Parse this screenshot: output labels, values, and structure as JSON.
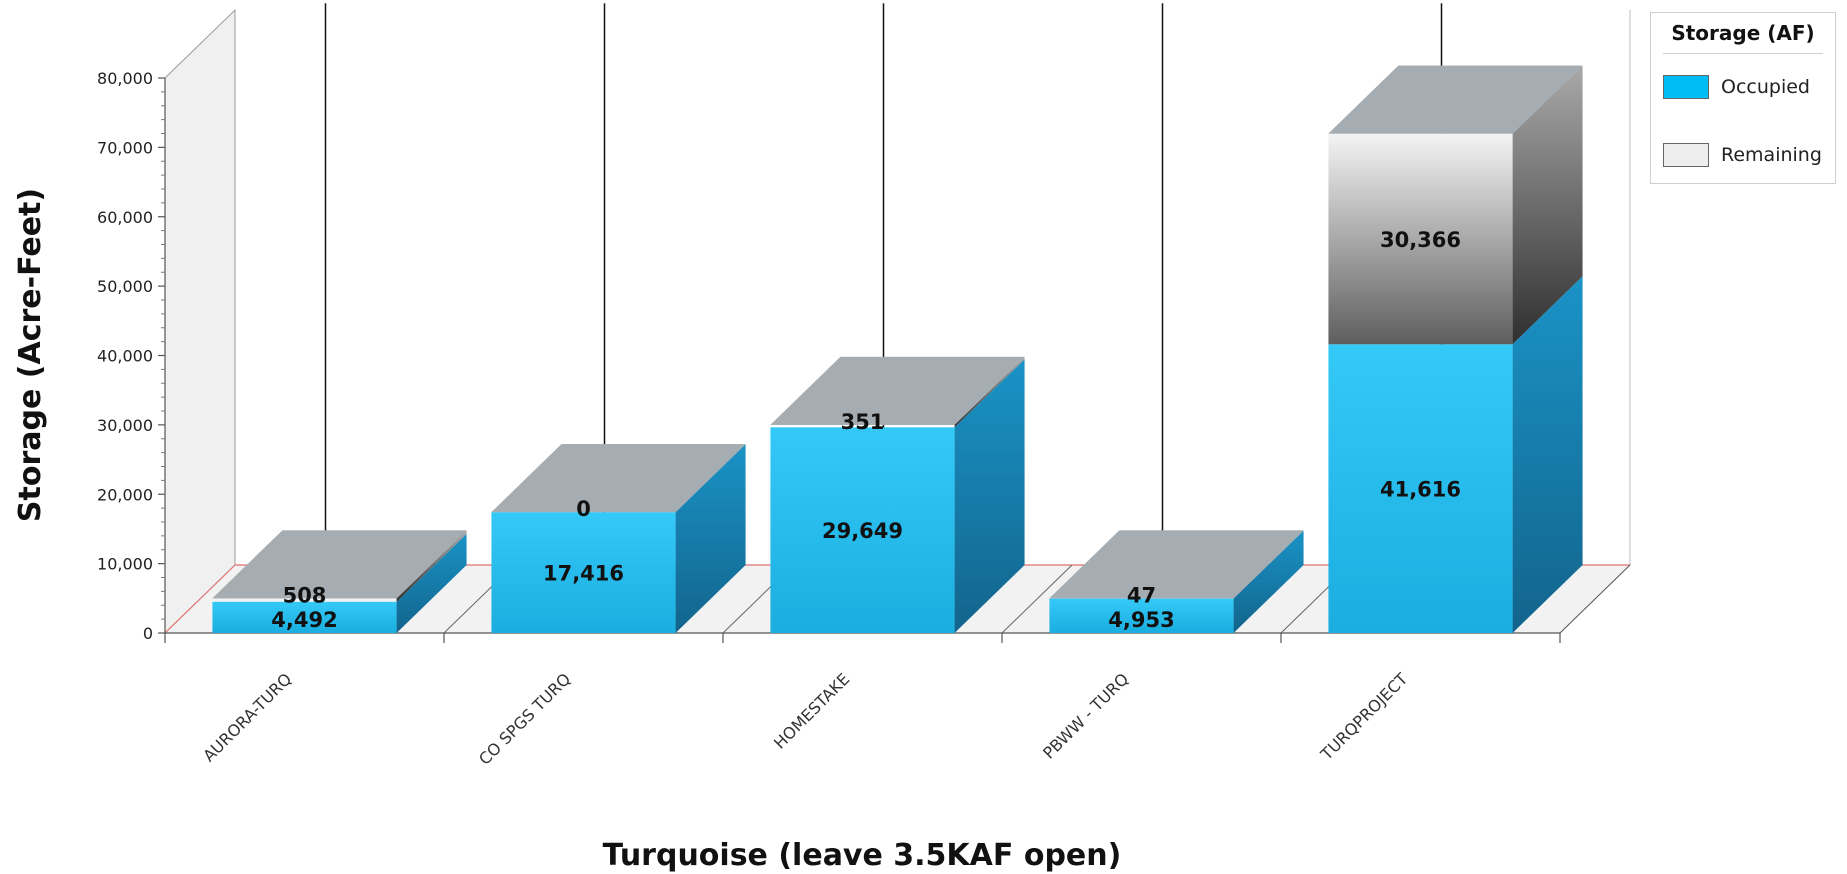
{
  "chart_data": {
    "type": "bar",
    "stacked": true,
    "three_d": true,
    "title": "",
    "xlabel": "Turquoise (leave 3.5KAF open)",
    "ylabel": "Storage (Acre-Feet)",
    "ylim": [
      0,
      80000
    ],
    "yticks": [
      "0",
      "10,000",
      "20,000",
      "30,000",
      "40,000",
      "50,000",
      "60,000",
      "70,000",
      "80,000"
    ],
    "ytick_values": [
      0,
      10000,
      20000,
      30000,
      40000,
      50000,
      60000,
      70000,
      80000
    ],
    "categories": [
      "AURORA-TURQ",
      "CO SPGS TURQ",
      "HOMESTAKE",
      "PBWW - TURQ",
      "TURQPROJECT"
    ],
    "series": [
      {
        "name": "Occupied",
        "color": "#1ec0f5",
        "values": [
          4492,
          17416,
          29649,
          4953,
          41616
        ],
        "labels": [
          "4,492",
          "17,416",
          "29,649",
          "4,953",
          "41,616"
        ]
      },
      {
        "name": "Remaining",
        "color": "#e8e8e8",
        "values": [
          508,
          0,
          351,
          47,
          30366
        ],
        "labels": [
          "508",
          "0",
          "351",
          "47",
          "30,366"
        ]
      }
    ],
    "legend": {
      "title": "Storage (AF)",
      "position": "top-right",
      "items": [
        "Occupied",
        "Remaining"
      ]
    },
    "grid": false
  }
}
